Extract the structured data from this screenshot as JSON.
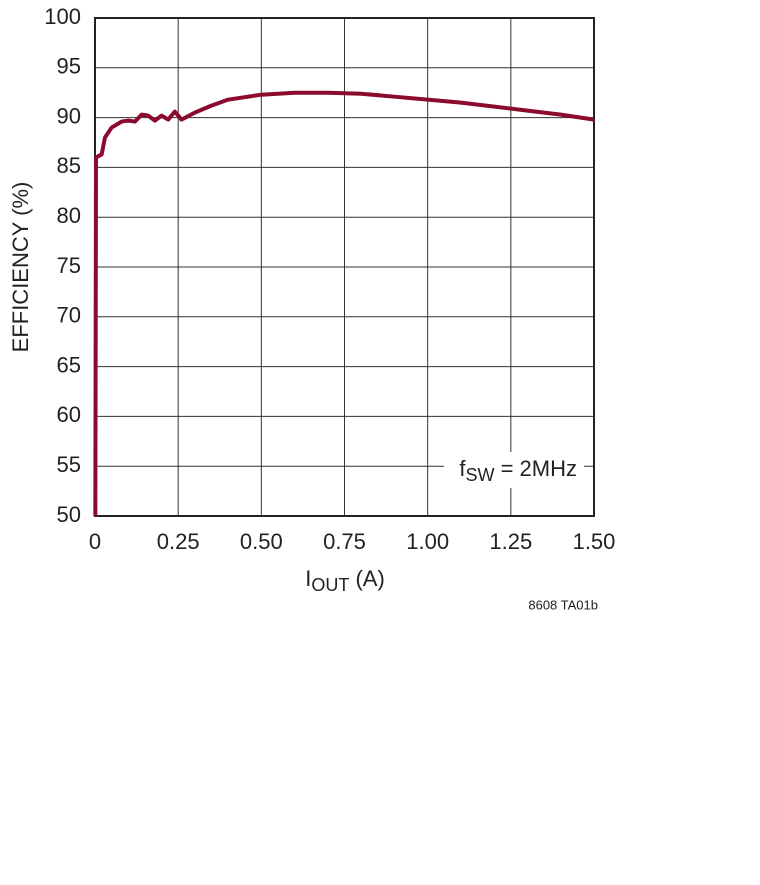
{
  "chart_data": {
    "type": "line",
    "ylabel": "EFFICIENCY (%)",
    "xlabel": [
      "I",
      "OUT",
      " (A)"
    ],
    "annotation": [
      "f",
      "SW",
      " = 2MHz"
    ],
    "note": "8608 TA01b",
    "xlim": [
      0,
      1.5
    ],
    "xticks": [
      0,
      0.25,
      {
        "value": 0.5,
        "label": "0.50"
      },
      0.75,
      {
        "value": 1,
        "label": "1.00"
      },
      1.25,
      {
        "value": 1.5,
        "label": "1.50"
      }
    ],
    "ylim": [
      50,
      100
    ],
    "yticks": [
      50,
      55,
      60,
      65,
      70,
      75,
      80,
      85,
      90,
      95,
      100
    ],
    "grid": true,
    "series": [
      {
        "color": "#8b0a2e",
        "x": [
          0.001,
          0.003,
          0.02,
          0.03,
          0.05,
          0.08,
          0.1,
          0.12,
          0.14,
          0.16,
          0.18,
          0.2,
          0.22,
          0.24,
          0.26,
          0.3,
          0.35,
          0.4,
          0.5,
          0.6,
          0.7,
          0.8,
          0.9,
          1.0,
          1.1,
          1.2,
          1.3,
          1.4,
          1.5
        ],
        "values": [
          50,
          86,
          86.3,
          88,
          89,
          89.6,
          89.7,
          89.6,
          90.3,
          90.2,
          89.7,
          90.2,
          89.8,
          90.6,
          89.8,
          90.5,
          91.2,
          91.8,
          92.3,
          92.5,
          92.5,
          92.4,
          92.1,
          91.8,
          91.5,
          91.1,
          90.7,
          90.3,
          89.8
        ]
      }
    ]
  }
}
